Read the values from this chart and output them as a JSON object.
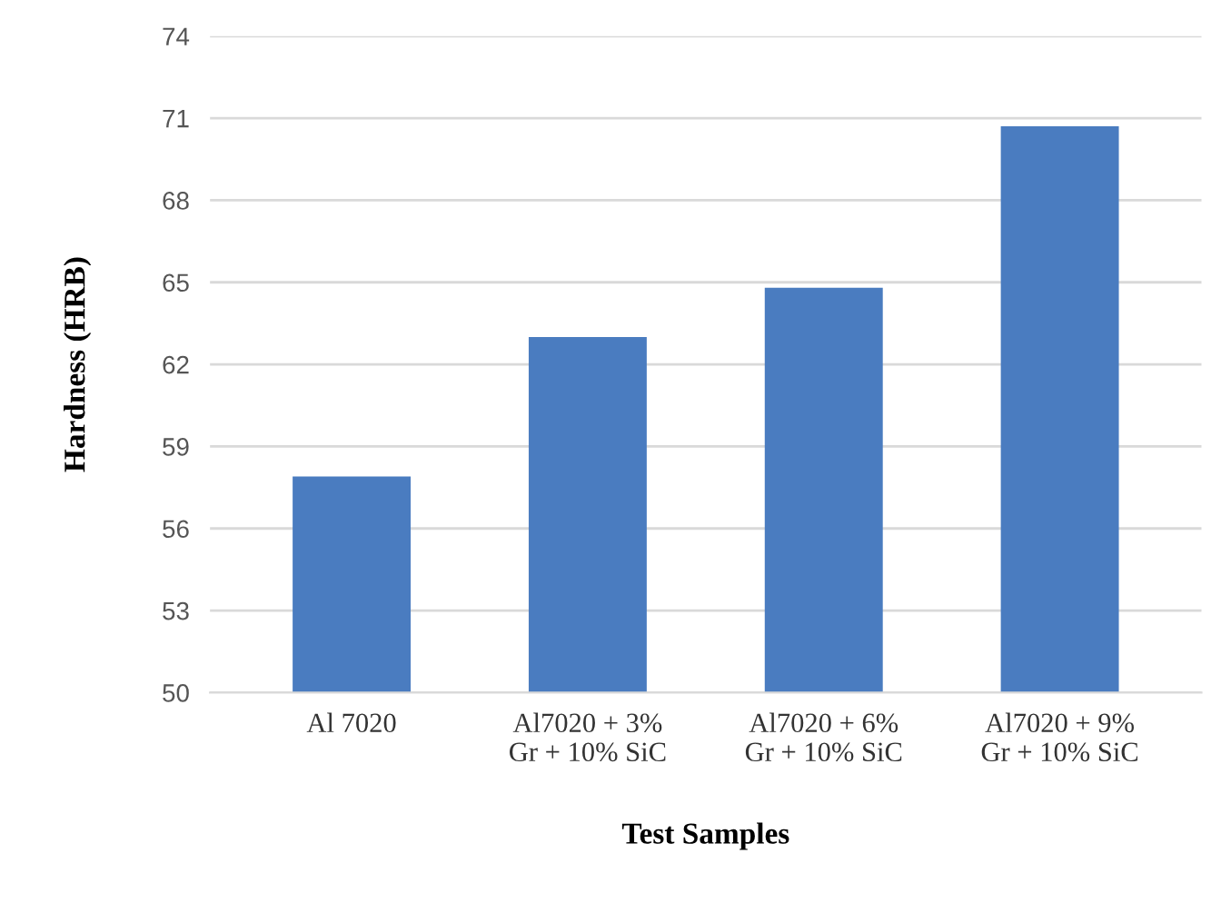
{
  "chart_data": {
    "type": "bar",
    "xlabel": "Test Samples",
    "ylabel": "Hardness (HRB)",
    "categories": [
      "Al 7020",
      "Al7020 + 3%\nGr + 10% SiC",
      "Al7020 + 6%\nGr + 10% SiC",
      "Al7020 + 9%\nGr + 10% SiC"
    ],
    "values": [
      57.9,
      63.0,
      64.8,
      70.7
    ],
    "color": "#4a7cc0",
    "ylim": [
      50,
      74
    ],
    "yticks": [
      50,
      53,
      56,
      59,
      62,
      65,
      68,
      71,
      74
    ],
    "grid": "y",
    "legend": false
  }
}
